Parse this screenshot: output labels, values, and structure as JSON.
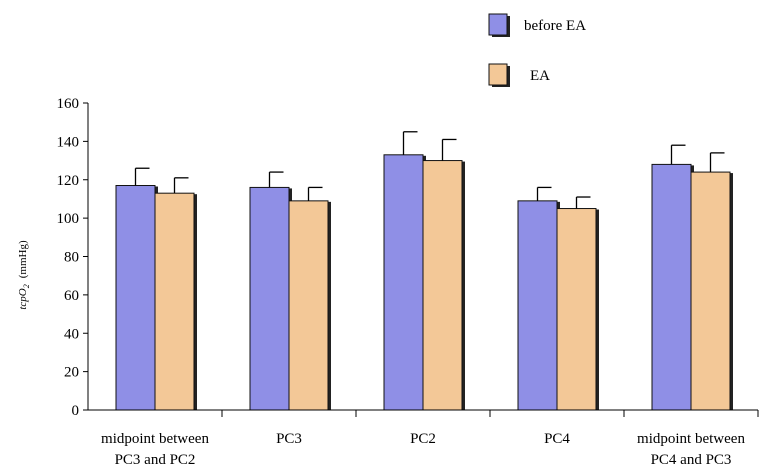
{
  "chart_data": {
    "type": "bar",
    "title": "",
    "xlabel": "",
    "ylabel": {
      "main": "tcpO",
      "subscript": "2",
      "unit": "(mmHg)"
    },
    "ylim": [
      0,
      160
    ],
    "yticks": [
      0,
      20,
      40,
      60,
      80,
      100,
      120,
      140,
      160
    ],
    "grid": false,
    "legend_position": "top-right",
    "categories": [
      [
        "midpoint between",
        "PC3 and PC2"
      ],
      [
        "PC3"
      ],
      [
        "PC2"
      ],
      [
        "PC4"
      ],
      [
        "midpoint between",
        "PC4 and PC3"
      ]
    ],
    "series": [
      {
        "name": "before EA",
        "color": "#8f8fe6",
        "values": [
          117,
          116,
          133,
          109,
          128
        ],
        "errors": [
          9,
          8,
          12,
          7,
          10
        ]
      },
      {
        "name": "EA",
        "color": "#f3c897",
        "values": [
          113,
          109,
          130,
          105,
          124
        ],
        "errors": [
          8,
          7,
          11,
          6,
          10
        ]
      }
    ]
  }
}
